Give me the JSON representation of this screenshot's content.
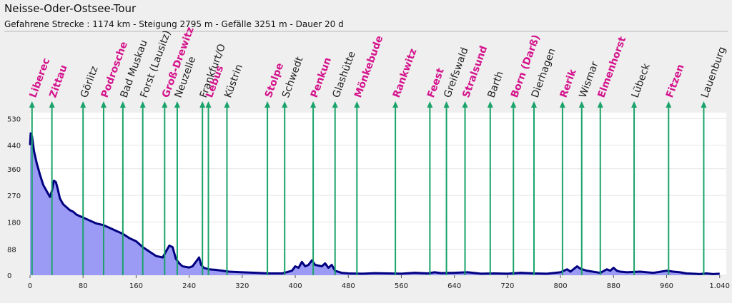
{
  "title": "Neisse-Oder-Ostsee-Tour",
  "subtitle": "Gefahrene Strecke : 1174 km  -  Steigung 2795 m  -  Gefälle 3251 m  -  Dauer 20 d",
  "chart_data": {
    "type": "area",
    "xlim": [
      0,
      1050
    ],
    "ylim": [
      0,
      550
    ],
    "x_ticks": [
      0,
      80,
      160,
      240,
      320,
      400,
      480,
      560,
      640,
      720,
      800,
      880,
      960,
      1040
    ],
    "x_tick_labels": [
      "0",
      "80",
      "160",
      "240",
      "320",
      "400",
      "480",
      "560",
      "640",
      "720",
      "800",
      "880",
      "960",
      "1.040"
    ],
    "y_ticks": [
      0,
      88,
      180,
      270,
      360,
      440,
      530
    ],
    "colors": {
      "fill": "#9b9bf5",
      "line": "#000080",
      "marker": "#1aa36a",
      "highlight": "#d4148c",
      "plain": "#222222",
      "plot_bg": "#ffffff"
    },
    "profile": [
      [
        0,
        440
      ],
      [
        1,
        480
      ],
      [
        3,
        470
      ],
      [
        6,
        420
      ],
      [
        10,
        380
      ],
      [
        15,
        340
      ],
      [
        20,
        305
      ],
      [
        25,
        285
      ],
      [
        30,
        265
      ],
      [
        33,
        285
      ],
      [
        36,
        320
      ],
      [
        39,
        315
      ],
      [
        42,
        290
      ],
      [
        45,
        260
      ],
      [
        50,
        240
      ],
      [
        55,
        230
      ],
      [
        60,
        220
      ],
      [
        65,
        215
      ],
      [
        70,
        205
      ],
      [
        75,
        200
      ],
      [
        80,
        195
      ],
      [
        90,
        185
      ],
      [
        100,
        175
      ],
      [
        110,
        170
      ],
      [
        120,
        160
      ],
      [
        130,
        150
      ],
      [
        140,
        140
      ],
      [
        150,
        125
      ],
      [
        160,
        115
      ],
      [
        170,
        95
      ],
      [
        180,
        80
      ],
      [
        190,
        65
      ],
      [
        200,
        60
      ],
      [
        205,
        80
      ],
      [
        210,
        100
      ],
      [
        215,
        95
      ],
      [
        220,
        55
      ],
      [
        225,
        40
      ],
      [
        230,
        30
      ],
      [
        235,
        28
      ],
      [
        240,
        26
      ],
      [
        245,
        30
      ],
      [
        250,
        45
      ],
      [
        255,
        60
      ],
      [
        258,
        35
      ],
      [
        262,
        25
      ],
      [
        270,
        20
      ],
      [
        280,
        18
      ],
      [
        290,
        15
      ],
      [
        300,
        12
      ],
      [
        320,
        10
      ],
      [
        340,
        8
      ],
      [
        360,
        6
      ],
      [
        380,
        6
      ],
      [
        395,
        15
      ],
      [
        400,
        30
      ],
      [
        405,
        25
      ],
      [
        410,
        45
      ],
      [
        415,
        30
      ],
      [
        420,
        35
      ],
      [
        425,
        50
      ],
      [
        430,
        35
      ],
      [
        440,
        30
      ],
      [
        445,
        40
      ],
      [
        450,
        25
      ],
      [
        455,
        35
      ],
      [
        460,
        15
      ],
      [
        470,
        8
      ],
      [
        480,
        6
      ],
      [
        500,
        5
      ],
      [
        520,
        7
      ],
      [
        540,
        6
      ],
      [
        560,
        5
      ],
      [
        580,
        8
      ],
      [
        600,
        6
      ],
      [
        610,
        10
      ],
      [
        620,
        7
      ],
      [
        640,
        8
      ],
      [
        660,
        10
      ],
      [
        680,
        5
      ],
      [
        700,
        6
      ],
      [
        720,
        5
      ],
      [
        740,
        8
      ],
      [
        760,
        6
      ],
      [
        780,
        5
      ],
      [
        800,
        10
      ],
      [
        810,
        20
      ],
      [
        815,
        12
      ],
      [
        825,
        30
      ],
      [
        830,
        22
      ],
      [
        840,
        15
      ],
      [
        860,
        8
      ],
      [
        870,
        20
      ],
      [
        875,
        15
      ],
      [
        880,
        25
      ],
      [
        885,
        15
      ],
      [
        890,
        12
      ],
      [
        900,
        10
      ],
      [
        920,
        12
      ],
      [
        940,
        8
      ],
      [
        960,
        15
      ],
      [
        970,
        12
      ],
      [
        980,
        10
      ],
      [
        990,
        6
      ],
      [
        1000,
        5
      ],
      [
        1010,
        4
      ],
      [
        1020,
        6
      ],
      [
        1030,
        4
      ],
      [
        1040,
        5
      ]
    ],
    "stops": [
      {
        "name": "Liberec",
        "km": 3,
        "highlight": true
      },
      {
        "name": "Zittau",
        "km": 33,
        "highlight": true
      },
      {
        "name": "Görlitz",
        "km": 80,
        "highlight": false
      },
      {
        "name": "Podrosche",
        "km": 111,
        "highlight": true
      },
      {
        "name": "Bad Muskau",
        "km": 140,
        "highlight": false
      },
      {
        "name": "Forst (Lausitz)",
        "km": 170,
        "highlight": false
      },
      {
        "name": "Groß-Drewitz",
        "km": 203,
        "highlight": true
      },
      {
        "name": "Neuzelle",
        "km": 222,
        "highlight": false
      },
      {
        "name": "Frankfurt/O",
        "km": 260,
        "highlight": false
      },
      {
        "name": "Lebus",
        "km": 269,
        "highlight": true
      },
      {
        "name": "Küstrin",
        "km": 297,
        "highlight": false
      },
      {
        "name": "Stolpe",
        "km": 358,
        "highlight": true
      },
      {
        "name": "Schwedt",
        "km": 384,
        "highlight": false
      },
      {
        "name": "Penkun",
        "km": 427,
        "highlight": true
      },
      {
        "name": "Glashütte",
        "km": 460,
        "highlight": false
      },
      {
        "name": "Mönkebude",
        "km": 493,
        "highlight": true
      },
      {
        "name": "Rankwitz",
        "km": 551,
        "highlight": true
      },
      {
        "name": "Feest",
        "km": 603,
        "highlight": true
      },
      {
        "name": "Greifswald",
        "km": 628,
        "highlight": false
      },
      {
        "name": "Stralsund",
        "km": 656,
        "highlight": true
      },
      {
        "name": "Barth",
        "km": 694,
        "highlight": false
      },
      {
        "name": "Born (Darß)",
        "km": 729,
        "highlight": true
      },
      {
        "name": "Dierhagen",
        "km": 760,
        "highlight": false
      },
      {
        "name": "Rerik",
        "km": 803,
        "highlight": true
      },
      {
        "name": "Wismar",
        "km": 832,
        "highlight": false
      },
      {
        "name": "Elmenhorst",
        "km": 860,
        "highlight": true
      },
      {
        "name": "Lübeck",
        "km": 911,
        "highlight": false
      },
      {
        "name": "Fitzen",
        "km": 963,
        "highlight": true
      },
      {
        "name": "Lauenburg",
        "km": 1016,
        "highlight": false
      }
    ]
  }
}
